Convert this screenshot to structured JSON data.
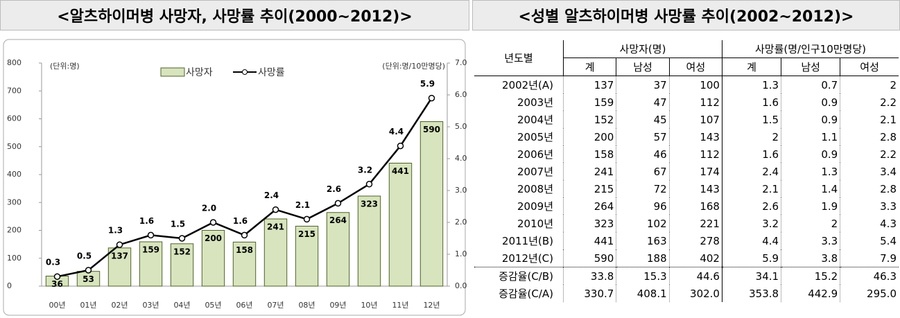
{
  "chart_data": {
    "type": "bar_line",
    "title": "<알츠하이머병 사망자, 사망률 추이(2000~2012)>",
    "y_unit": "(단위:명)",
    "y2_unit": "(단위:명/10만명당)",
    "categories": [
      "00년",
      "01년",
      "02년",
      "03년",
      "04년",
      "05년",
      "06년",
      "07년",
      "08년",
      "09년",
      "10년",
      "11년",
      "12년"
    ],
    "series": [
      {
        "name": "사망자",
        "type": "bar",
        "color": "#d7e4bd",
        "values": [
          36,
          53,
          137,
          159,
          152,
          200,
          158,
          241,
          215,
          264,
          323,
          441,
          590
        ]
      },
      {
        "name": "사망률",
        "type": "line",
        "axis": "y2",
        "color": "#000000",
        "values": [
          0.3,
          0.5,
          1.3,
          1.6,
          1.5,
          2.0,
          1.6,
          2.4,
          2.1,
          2.6,
          3.2,
          4.4,
          5.9
        ],
        "value_labels": [
          "0.3",
          "0.5",
          "1.3",
          "1.6",
          "1.5",
          "2.0",
          "1.6",
          "2.4",
          "2.1",
          "2.6",
          "3.2",
          "4.4",
          "5.9"
        ]
      }
    ],
    "ylim": [
      0,
      800
    ],
    "yticks": [
      0,
      100,
      200,
      300,
      400,
      500,
      600,
      700,
      800
    ],
    "y2lim": [
      0,
      7
    ],
    "y2ticks": [
      {
        "value": 0,
        "label": "0.0"
      },
      {
        "value": 1,
        "label": "1.0"
      },
      {
        "value": 2,
        "label": "2.0"
      },
      {
        "value": 3,
        "label": "3.0"
      },
      {
        "value": 4,
        "label": "4.0"
      },
      {
        "value": 5,
        "label": "5.0"
      },
      {
        "value": 6,
        "label": "6.0"
      },
      {
        "value": 7,
        "label": "7.0"
      }
    ]
  },
  "table": {
    "title": "<성별 알츠하이머병 사망률 추이(2002~2012)>",
    "row_header": "년도별",
    "groups": [
      "사망자(명)",
      "사망률(명/인구10만명당)"
    ],
    "header": [
      "계",
      "남성",
      "여성",
      "계",
      "남성",
      "여성"
    ],
    "rows": [
      [
        "2002년(A)",
        "137",
        "37",
        "100",
        "1.3",
        "0.7",
        "2"
      ],
      [
        "2003년",
        "159",
        "47",
        "112",
        "1.6",
        "0.9",
        "2.2"
      ],
      [
        "2004년",
        "152",
        "45",
        "107",
        "1.5",
        "0.9",
        "2.1"
      ],
      [
        "2005년",
        "200",
        "57",
        "143",
        "2",
        "1.1",
        "2.8"
      ],
      [
        "2006년",
        "158",
        "46",
        "112",
        "1.6",
        "0.9",
        "2.2"
      ],
      [
        "2007년",
        "241",
        "67",
        "174",
        "2.4",
        "1.3",
        "3.4"
      ],
      [
        "2008년",
        "215",
        "72",
        "143",
        "2.1",
        "1.4",
        "2.8"
      ],
      [
        "2009년",
        "264",
        "96",
        "168",
        "2.6",
        "1.9",
        "3.3"
      ],
      [
        "2010년",
        "323",
        "102",
        "221",
        "3.2",
        "2",
        "4.3"
      ],
      [
        "2011년(B)",
        "441",
        "163",
        "278",
        "4.4",
        "3.3",
        "5.4"
      ],
      [
        "2012년(C)",
        "590",
        "188",
        "402",
        "5.9",
        "3.8",
        "7.9"
      ],
      [
        "증감율(C/B)",
        "33.8",
        "15.3",
        "44.6",
        "34.1",
        "15.2",
        "46.3"
      ],
      [
        "증감율(C/A)",
        "330.7",
        "408.1",
        "302.0",
        "353.8",
        "442.9",
        "295.0"
      ]
    ]
  }
}
